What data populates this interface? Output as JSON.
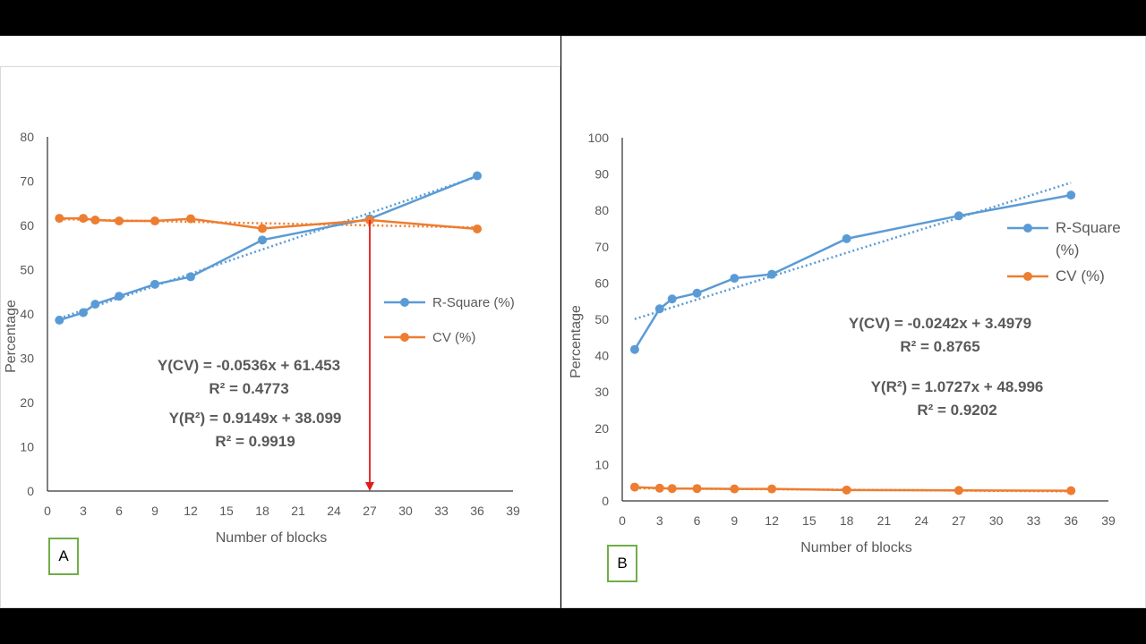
{
  "chart_data": [
    {
      "type": "line",
      "panel_label": "A",
      "xlabel": "Number of blocks",
      "ylabel": "Percentage",
      "xlim": [
        0,
        39
      ],
      "ylim": [
        0,
        80
      ],
      "xticks": [
        0,
        3,
        6,
        9,
        12,
        15,
        18,
        21,
        24,
        27,
        30,
        33,
        36,
        39
      ],
      "yticks": [
        0,
        10,
        20,
        30,
        40,
        50,
        60,
        70,
        80
      ],
      "x": [
        1,
        3,
        4,
        6,
        9,
        12,
        18,
        27,
        36
      ],
      "series": [
        {
          "name": "R-Square (%)",
          "color": "#5b9bd5",
          "values": [
            38.6,
            40.3,
            42.2,
            44.0,
            46.7,
            48.4,
            56.7,
            61.5,
            71.2
          ],
          "trend": {
            "slope": 0.9149,
            "intercept": 38.099
          }
        },
        {
          "name": "CV (%)",
          "color": "#ed7d31",
          "values": [
            61.6,
            61.6,
            61.2,
            61.0,
            61.0,
            61.5,
            59.3,
            61.2,
            59.2
          ],
          "trend": {
            "slope": -0.0536,
            "intercept": 61.453
          }
        }
      ],
      "annotations": [
        {
          "line1": "Y(CV) = -0.0536x + 61.453",
          "line2": "R² = 0.4773"
        },
        {
          "line1": "Y(R²) = 0.9149x + 38.099",
          "line2": "R² = 0.9919"
        }
      ],
      "marker_arrow": {
        "x": 27,
        "color": "#e31a1c"
      },
      "legend_position": "right",
      "grid": false
    },
    {
      "type": "line",
      "panel_label": "B",
      "xlabel": "Number of blocks",
      "ylabel": "Percentage",
      "xlim": [
        0,
        39
      ],
      "ylim": [
        0,
        100
      ],
      "xticks": [
        0,
        3,
        6,
        9,
        12,
        15,
        18,
        21,
        24,
        27,
        30,
        33,
        36,
        39
      ],
      "yticks": [
        0,
        10,
        20,
        30,
        40,
        50,
        60,
        70,
        80,
        90,
        100
      ],
      "x": [
        1,
        3,
        4,
        6,
        9,
        12,
        18,
        27,
        36
      ],
      "series": [
        {
          "name": "R-Square (%)",
          "legend_lines": [
            "R-Square",
            "(%)"
          ],
          "color": "#5b9bd5",
          "values": [
            41.7,
            52.9,
            55.6,
            57.2,
            61.3,
            62.4,
            72.2,
            78.5,
            84.2
          ],
          "trend": {
            "slope": 1.0727,
            "intercept": 48.996
          }
        },
        {
          "name": "CV (%)",
          "legend_lines": [
            "CV (%)"
          ],
          "color": "#ed7d31",
          "values": [
            3.8,
            3.5,
            3.4,
            3.4,
            3.3,
            3.3,
            3.0,
            2.9,
            2.8
          ],
          "trend": {
            "slope": -0.0242,
            "intercept": 3.4979
          }
        }
      ],
      "annotations": [
        {
          "line1": "Y(CV) = -0.0242x + 3.4979",
          "line2": "R² = 0.8765"
        },
        {
          "line1": "Y(R²) = 1.0727x + 48.996",
          "line2": "R² = 0.9202"
        }
      ],
      "legend_position": "right",
      "grid": false
    }
  ]
}
